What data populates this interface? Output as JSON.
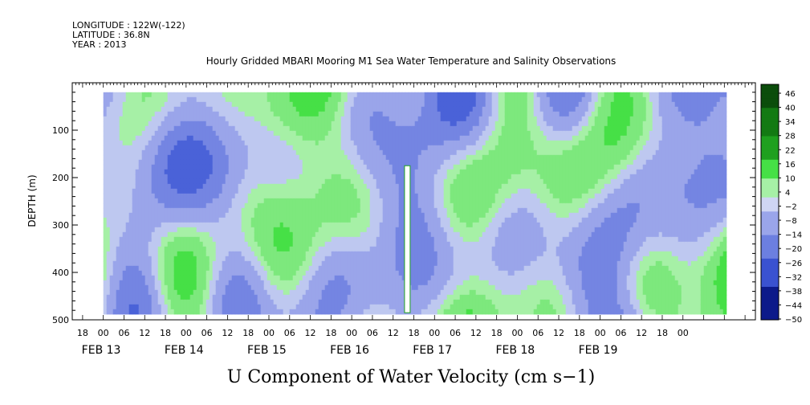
{
  "header": {
    "longitude": "LONGITUDE : 122W(-122)",
    "latitude": "LATITUDE : 36.8N",
    "year": "YEAR : 2013"
  },
  "chart_data": {
    "type": "heatmap",
    "title": "Hourly Gridded MBARI Mooring M1 Sea Water Temperature and Salinity Observations",
    "ylabel": "DEPTH (m)",
    "xlabel": "U Component of Water Velocity (cm s−1)",
    "y_axis": {
      "range": [
        500,
        0
      ],
      "inverted": true,
      "ticks": [
        100,
        200,
        300,
        400,
        500
      ],
      "data_top": 20,
      "data_bottom": 485
    },
    "x_axis": {
      "range_hours": [
        -9,
        189
      ],
      "hour_tick_labels": [
        "18",
        "00",
        "06",
        "12",
        "18",
        "00",
        "06",
        "12",
        "18",
        "00",
        "06",
        "12",
        "18",
        "00",
        "06",
        "12",
        "18",
        "00",
        "06",
        "12",
        "18",
        "00",
        "06",
        "12",
        "18",
        "00",
        "06",
        "12",
        "18",
        "00"
      ],
      "day_labels": [
        "FEB 13",
        "FEB 14",
        "FEB 15",
        "FEB 16",
        "FEB 17",
        "FEB 18",
        "FEB 19"
      ]
    },
    "colorbar": {
      "min": -50,
      "max": 50,
      "tick_labels": [
        "46",
        "40",
        "34",
        "28",
        "22",
        "16",
        "10",
        "4",
        "−2",
        "−8",
        "−14",
        "−20",
        "−26",
        "−32",
        "−38",
        "−44",
        "−50"
      ]
    },
    "colors": {
      "negative_main": "#9aa5ea",
      "negative_strong": "#6c7fe0",
      "positive_light": "#a6f0a6",
      "positive_main": "#46e046",
      "positive_strong": "#1fa01f"
    },
    "data_gap_hour": 88,
    "grid": false
  }
}
